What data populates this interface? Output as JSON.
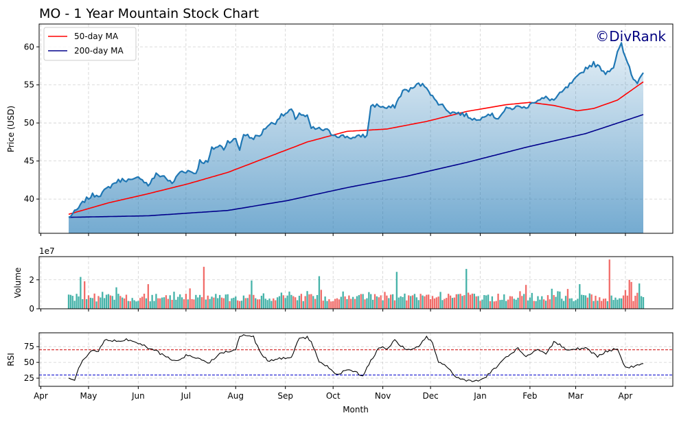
{
  "title": "MO - 1 Year Mountain Stock Chart",
  "watermark": "©DivRank",
  "colors": {
    "price": "#1f77b4",
    "ma50": "#ff0000",
    "ma200": "#00008b",
    "vol_up": "#26a69a",
    "vol_down": "#ef5350",
    "rsi": "#000000",
    "rsi_over": "#cc0000",
    "rsi_under": "#0000cc",
    "watermark": "#000080"
  },
  "chart_data": [
    {
      "type": "area",
      "panel": "price",
      "ylabel": "Price (USD)",
      "xlabel": "",
      "ylim": [
        35.5,
        63
      ],
      "yticks": [
        "40",
        "45",
        "50",
        "55",
        "60"
      ],
      "grid": true,
      "legend": {
        "placement": "top-left",
        "entries": [
          "50-day MA",
          "200-day MA"
        ]
      },
      "anchors_price": [
        [
          0,
          37.6
        ],
        [
          4,
          38.5
        ],
        [
          8,
          39.8
        ],
        [
          12,
          40.5
        ],
        [
          16,
          40.6
        ],
        [
          20,
          41.5
        ],
        [
          24,
          42.3
        ],
        [
          28,
          42.6
        ],
        [
          32,
          42.4
        ],
        [
          36,
          42.9
        ],
        [
          40,
          41.8
        ],
        [
          44,
          43.2
        ],
        [
          48,
          43.0
        ],
        [
          52,
          42.0
        ],
        [
          56,
          43.6
        ],
        [
          60,
          43.7
        ],
        [
          64,
          43.4
        ],
        [
          66,
          45.0
        ],
        [
          70,
          44.8
        ],
        [
          72,
          46.6
        ],
        [
          76,
          47.0
        ],
        [
          78,
          46.6
        ],
        [
          80,
          47.6
        ],
        [
          84,
          47.8
        ],
        [
          86,
          46.5
        ],
        [
          88,
          48.6
        ],
        [
          92,
          48.0
        ],
        [
          96,
          48.3
        ],
        [
          100,
          49.7
        ],
        [
          104,
          50.1
        ],
        [
          106,
          50.8
        ],
        [
          110,
          51.3
        ],
        [
          112,
          51.7
        ],
        [
          114,
          50.6
        ],
        [
          116,
          51.3
        ],
        [
          118,
          50.9
        ],
        [
          120,
          50.8
        ],
        [
          122,
          49.3
        ],
        [
          126,
          49.2
        ],
        [
          130,
          49.0
        ],
        [
          132,
          48.6
        ],
        [
          136,
          48.3
        ],
        [
          140,
          48.2
        ],
        [
          144,
          48.0
        ],
        [
          148,
          48.4
        ],
        [
          150,
          48.2
        ],
        [
          152,
          52.3
        ],
        [
          156,
          52.3
        ],
        [
          160,
          51.9
        ],
        [
          164,
          52.2
        ],
        [
          168,
          54.2
        ],
        [
          172,
          54.4
        ],
        [
          176,
          55.1
        ],
        [
          180,
          54.8
        ],
        [
          184,
          53.0
        ],
        [
          188,
          52.3
        ],
        [
          192,
          51.4
        ],
        [
          196,
          51.3
        ],
        [
          200,
          51.0
        ],
        [
          204,
          50.5
        ],
        [
          206,
          50.3
        ],
        [
          208,
          51.0
        ],
        [
          212,
          51.2
        ],
        [
          214,
          50.8
        ],
        [
          216,
          50.7
        ],
        [
          220,
          51.8
        ],
        [
          224,
          52.0
        ],
        [
          228,
          52.2
        ],
        [
          230,
          51.8
        ],
        [
          232,
          52.7
        ],
        [
          236,
          52.9
        ],
        [
          240,
          53.3
        ],
        [
          244,
          53.0
        ],
        [
          248,
          54.0
        ],
        [
          252,
          55.0
        ],
        [
          256,
          56.0
        ],
        [
          260,
          57.2
        ],
        [
          264,
          57.8
        ],
        [
          268,
          57.1
        ],
        [
          270,
          56.6
        ],
        [
          274,
          57.4
        ],
        [
          276,
          59.2
        ],
        [
          278,
          60.3
        ],
        [
          280,
          58.5
        ],
        [
          282,
          57.4
        ],
        [
          284,
          55.7
        ],
        [
          286,
          55.4
        ],
        [
          288,
          56.5
        ],
        [
          289,
          56.6
        ]
      ],
      "anchors_ma50": [
        [
          0,
          38.0
        ],
        [
          20,
          39.5
        ],
        [
          40,
          40.7
        ],
        [
          60,
          42.0
        ],
        [
          80,
          43.5
        ],
        [
          100,
          45.5
        ],
        [
          120,
          47.5
        ],
        [
          140,
          48.9
        ],
        [
          160,
          49.2
        ],
        [
          180,
          50.2
        ],
        [
          200,
          51.5
        ],
        [
          220,
          52.4
        ],
        [
          232,
          52.7
        ],
        [
          244,
          52.3
        ],
        [
          256,
          51.6
        ],
        [
          264,
          51.9
        ],
        [
          276,
          53.0
        ],
        [
          289,
          55.4
        ]
      ],
      "anchors_ma200": [
        [
          0,
          37.6
        ],
        [
          40,
          37.8
        ],
        [
          80,
          38.5
        ],
        [
          110,
          39.8
        ],
        [
          140,
          41.5
        ],
        [
          170,
          43.0
        ],
        [
          200,
          44.8
        ],
        [
          230,
          46.8
        ],
        [
          260,
          48.6
        ],
        [
          289,
          51.1
        ]
      ]
    },
    {
      "type": "bar",
      "panel": "volume",
      "ylabel": "Volume",
      "offset_label": "1e7",
      "ylim": [
        0,
        3.6
      ],
      "yticks": [
        "0",
        "2"
      ],
      "grid": true
    },
    {
      "type": "line",
      "panel": "rsi",
      "ylabel": "RSI",
      "xlabel": "Month",
      "ylim": [
        12,
        97
      ],
      "yticks": [
        "25",
        "50",
        "75"
      ],
      "overbought": 70,
      "oversold": 30,
      "grid": true,
      "anchors_rsi": [
        [
          0,
          24
        ],
        [
          3,
          22
        ],
        [
          6,
          48
        ],
        [
          12,
          70
        ],
        [
          15,
          67
        ],
        [
          18,
          85
        ],
        [
          24,
          84
        ],
        [
          30,
          86
        ],
        [
          36,
          80
        ],
        [
          40,
          72
        ],
        [
          44,
          68
        ],
        [
          48,
          60
        ],
        [
          54,
          52
        ],
        [
          60,
          62
        ],
        [
          66,
          55
        ],
        [
          70,
          48
        ],
        [
          76,
          65
        ],
        [
          80,
          68
        ],
        [
          84,
          70
        ],
        [
          86,
          92
        ],
        [
          90,
          93
        ],
        [
          93,
          90
        ],
        [
          96,
          68
        ],
        [
          100,
          52
        ],
        [
          106,
          56
        ],
        [
          112,
          58
        ],
        [
          116,
          88
        ],
        [
          120,
          90
        ],
        [
          122,
          84
        ],
        [
          126,
          50
        ],
        [
          130,
          44
        ],
        [
          134,
          30
        ],
        [
          140,
          38
        ],
        [
          144,
          34
        ],
        [
          148,
          30
        ],
        [
          152,
          52
        ],
        [
          156,
          74
        ],
        [
          160,
          72
        ],
        [
          164,
          85
        ],
        [
          168,
          74
        ],
        [
          172,
          70
        ],
        [
          176,
          75
        ],
        [
          180,
          90
        ],
        [
          183,
          82
        ],
        [
          186,
          50
        ],
        [
          190,
          45
        ],
        [
          194,
          28
        ],
        [
          200,
          20
        ],
        [
          206,
          22
        ],
        [
          210,
          28
        ],
        [
          214,
          40
        ],
        [
          220,
          58
        ],
        [
          226,
          72
        ],
        [
          230,
          60
        ],
        [
          236,
          70
        ],
        [
          240,
          64
        ],
        [
          244,
          82
        ],
        [
          248,
          76
        ],
        [
          252,
          68
        ],
        [
          256,
          72
        ],
        [
          260,
          72
        ],
        [
          266,
          60
        ],
        [
          270,
          67
        ],
        [
          276,
          72
        ],
        [
          280,
          42
        ],
        [
          284,
          44
        ],
        [
          289,
          50
        ]
      ]
    }
  ],
  "x_axis": {
    "months": [
      "Apr",
      "May",
      "Jun",
      "Jul",
      "Aug",
      "Sep",
      "Oct",
      "Nov",
      "Dec",
      "Jan",
      "Feb",
      "Mar",
      "Apr"
    ],
    "month_day_index": [
      -14,
      10,
      35,
      59,
      84,
      109,
      133,
      158,
      182,
      207,
      232,
      255,
      280
    ],
    "day_count": 290
  }
}
